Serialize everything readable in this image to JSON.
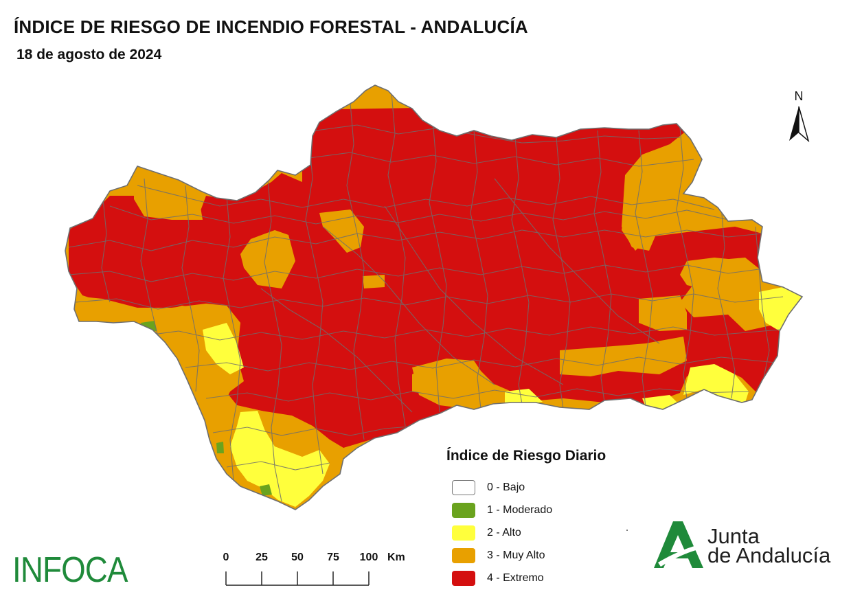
{
  "title": "ÍNDICE DE RIESGO DE INCENDIO FORESTAL - ANDALUCÍA",
  "date": "18 de agosto de 2024",
  "north_label": "N",
  "legend": {
    "title": "Índice de Riesgo Diario",
    "items": [
      {
        "label": "0 - Bajo",
        "color": "#ffffff"
      },
      {
        "label": "1 - Moderado",
        "color": "#6aa31e"
      },
      {
        "label": "2 - Alto",
        "color": "#ffff3c"
      },
      {
        "label": "3 - Muy Alto",
        "color": "#e8a000"
      },
      {
        "label": "4 - Extremo",
        "color": "#d40f0f"
      }
    ]
  },
  "scale_bar": {
    "ticks": [
      "0",
      "25",
      "50",
      "75",
      "100"
    ],
    "unit": "Km"
  },
  "logos": {
    "left": "INFOCA",
    "right_line1": "Junta",
    "right_line2": "de Andalucía"
  },
  "colors": {
    "extreme": "#d40f0f",
    "very_high": "#e8a000",
    "high": "#ffff3c",
    "moderate": "#6aa31e",
    "boundary": "#6e6e6e",
    "brand_green": "#1f8a3a"
  }
}
